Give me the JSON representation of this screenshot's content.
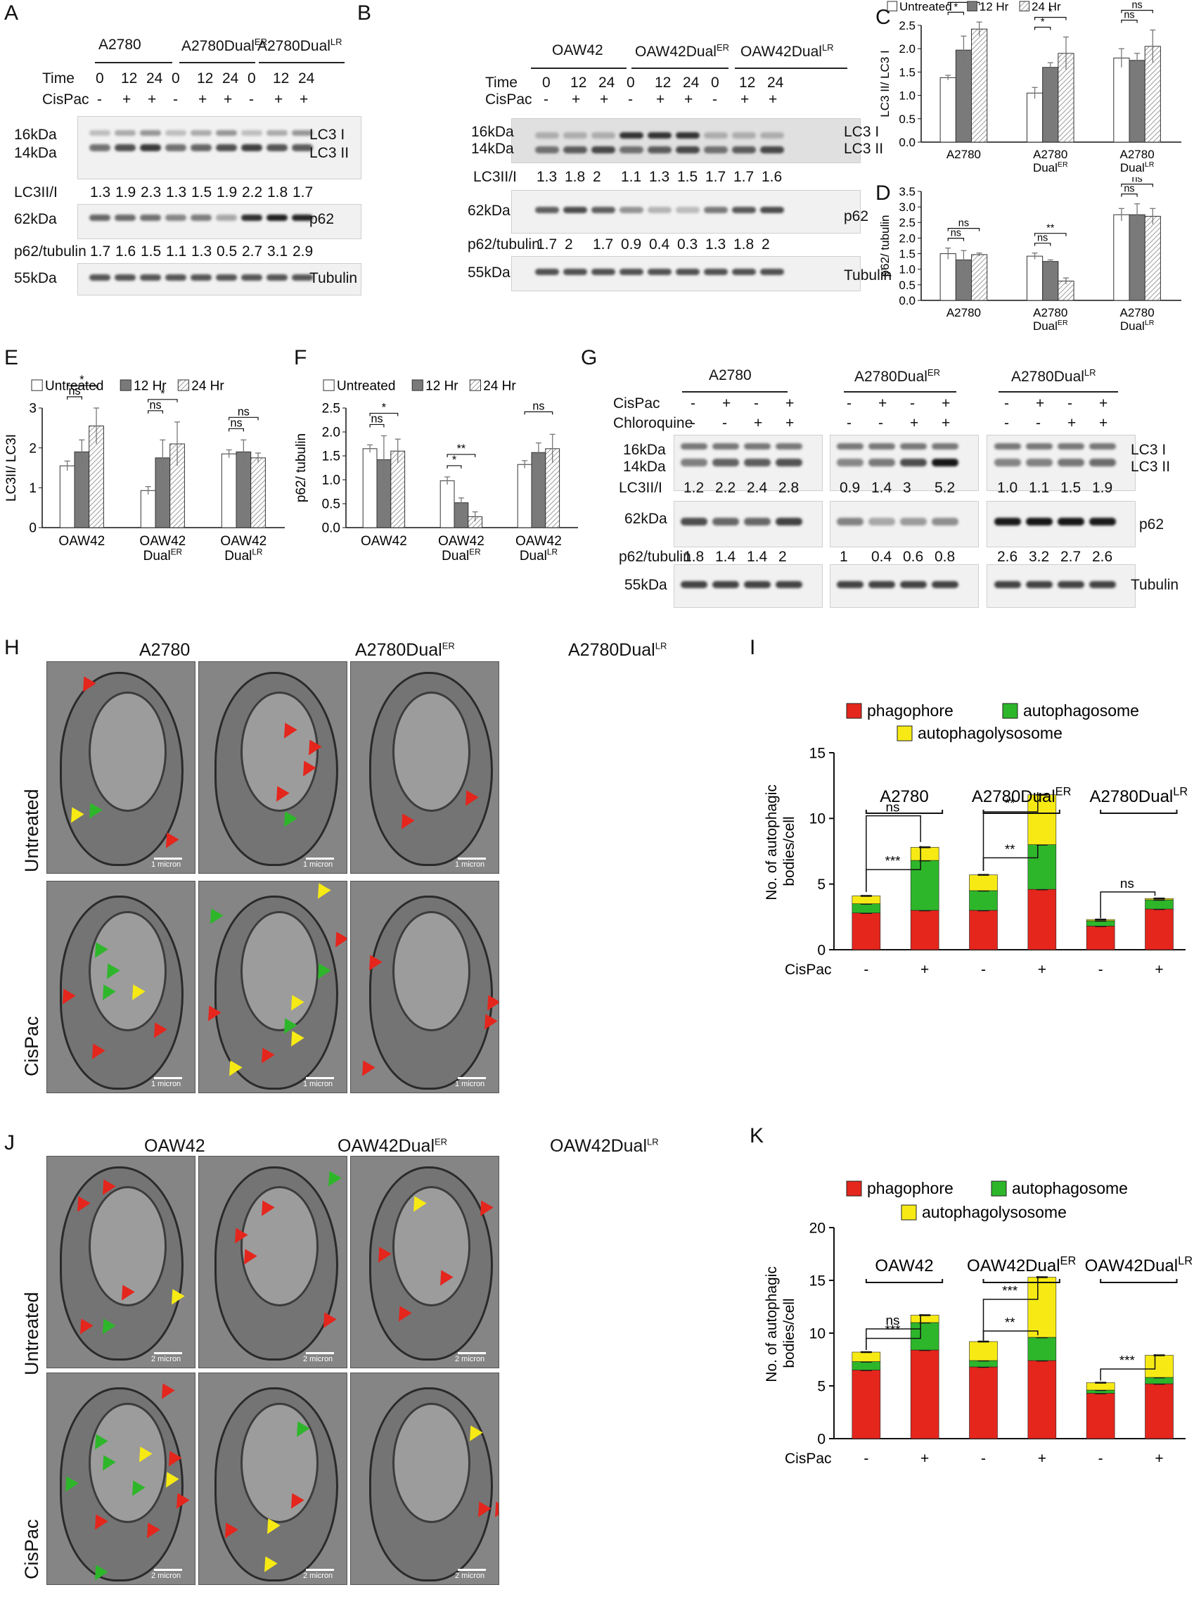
{
  "panel_labels": {
    "A": "A",
    "B": "B",
    "C": "C",
    "D": "D",
    "E": "E",
    "F": "F",
    "G": "G",
    "H": "H",
    "I": "I",
    "J": "J",
    "K": "K"
  },
  "panel_A": {
    "cell_lines": [
      "A2780",
      "A2780Dual",
      "A2780Dual"
    ],
    "cell_sups": [
      "",
      "ER",
      "LR"
    ],
    "time_label": "Time",
    "times": [
      "0",
      "12",
      "24",
      "0",
      "12",
      "24",
      "0",
      "12",
      "24"
    ],
    "cispac_label": "CisPac",
    "cispac": [
      "-",
      "+",
      "+",
      "-",
      "+",
      "+",
      "-",
      "+",
      "+"
    ],
    "mw": [
      "16kDa",
      "14kDa",
      "62kDa",
      "55kDa"
    ],
    "bands": [
      "LC3 I",
      "LC3 II",
      "p62",
      "Tubulin"
    ],
    "lc3_ratio_label": "LC3II/I",
    "lc3_ratios": [
      "1.3",
      "1.9",
      "2.3",
      "1.3",
      "1.5",
      "1.9",
      "2.2",
      "1.8",
      "1.7"
    ],
    "p62_ratio_label": "p62/tubulin",
    "p62_ratios": [
      "1.7",
      "1.6",
      "1.5",
      "1.1",
      "1.3",
      "0.5",
      "2.7",
      "3.1",
      "2.9"
    ]
  },
  "panel_B": {
    "cell_lines": [
      "OAW42",
      "OAW42Dual",
      "OAW42Dual"
    ],
    "cell_sups": [
      "",
      "ER",
      "LR"
    ],
    "time_label": "Time",
    "times": [
      "0",
      "12",
      "24",
      "0",
      "12",
      "24",
      "0",
      "12",
      "24"
    ],
    "cispac_label": "CisPac",
    "cispac": [
      "-",
      "+",
      "+",
      "-",
      "+",
      "+",
      "-",
      "+",
      "+"
    ],
    "mw": [
      "16kDa",
      "14kDa",
      "62kDa",
      "55kDa"
    ],
    "bands": [
      "LC3 I",
      "LC3 II",
      "p62",
      "Tubulin"
    ],
    "lc3_ratio_label": "LC3II/I",
    "lc3_ratios": [
      "1.3",
      "1.8",
      "2",
      "1.1",
      "1.3",
      "1.5",
      "1.7",
      "1.7",
      "1.6"
    ],
    "p62_ratio_label": "p62/tubulin",
    "p62_ratios": [
      "1.7",
      "2",
      "1.7",
      "0.9",
      "0.4",
      "0.3",
      "1.3",
      "1.8",
      "2"
    ]
  },
  "panel_G": {
    "cell_lines": [
      "A2780",
      "A2780Dual",
      "A2780Dual"
    ],
    "cell_sups": [
      "",
      "ER",
      "LR"
    ],
    "cispac_label": "CisPac",
    "chloroquine_label": "Chloroquine",
    "cispac": [
      "-",
      "+",
      "-",
      "+"
    ],
    "chloroquine": [
      "-",
      "-",
      "+",
      "+"
    ],
    "mw": [
      "16kDa",
      "14kDa",
      "62kDa",
      "55kDa"
    ],
    "bands": [
      "LC3 I",
      "LC3 II",
      "p62",
      "Tubulin"
    ],
    "lc3_ratio_label": "LC3II/I",
    "lc3_ratios": [
      "1.2",
      "2.2",
      "2.4",
      "2.8",
      "0.9",
      "1.4",
      "3",
      "5.2",
      "1.0",
      "1.1",
      "1.5",
      "1.9"
    ],
    "p62_ratio_label": "p62/tubulin",
    "p62_ratios": [
      "1.8",
      "1.4",
      "1.4",
      "2",
      "1",
      "0.4",
      "0.6",
      "0.8",
      "2.6",
      "3.2",
      "2.7",
      "2.6"
    ]
  },
  "panel_H": {
    "columns": [
      "A2780",
      "A2780Dual",
      "A2780Dual"
    ],
    "column_sups": [
      "",
      "ER",
      "LR"
    ],
    "rows": [
      "Untreated",
      "CisPac"
    ],
    "scale_text": "1 micron"
  },
  "panel_J": {
    "columns": [
      "OAW42",
      "OAW42Dual",
      "OAW42Dual"
    ],
    "column_sups": [
      "",
      "ER",
      "LR"
    ],
    "rows": [
      "Untreated",
      "CisPac"
    ],
    "scale_text": "2 micron"
  },
  "colors": {
    "phagophore": "#e4261d",
    "autophagosome": "#2eb62b",
    "autophagolysosome": "#f7ea14",
    "dark_bar": "#7a7a7a"
  },
  "chart_data": [
    {
      "id": "C",
      "type": "bar",
      "ylabel": "LC3 II/ LC3 I",
      "ylim": [
        0,
        2.5
      ],
      "yticks": [
        0,
        0.5,
        1.0,
        1.5,
        2.0,
        2.5
      ],
      "legend": [
        "Untreated",
        "12 Hr",
        "24 Hr"
      ],
      "categories": [
        "A2780",
        "A2780 Dual",
        "A2780 Dual"
      ],
      "category_sups": [
        "",
        "ER",
        "LR"
      ],
      "series": [
        {
          "name": "Untreated",
          "values": [
            1.38,
            1.05,
            1.8
          ],
          "errors": [
            0.05,
            0.12,
            0.2
          ]
        },
        {
          "name": "12 Hr",
          "values": [
            1.97,
            1.6,
            1.75
          ],
          "errors": [
            0.3,
            0.1,
            0.15
          ]
        },
        {
          "name": "24 Hr",
          "values": [
            2.42,
            1.9,
            2.05
          ],
          "errors": [
            0.15,
            0.35,
            0.35
          ]
        }
      ],
      "sig": [
        {
          "group": 0,
          "text": "**"
        },
        {
          "group": 0,
          "text": "*"
        },
        {
          "group": 1,
          "text": "*"
        },
        {
          "group": 1,
          "text": "*"
        },
        {
          "group": 2,
          "text": "ns"
        },
        {
          "group": 2,
          "text": "ns"
        }
      ]
    },
    {
      "id": "D",
      "type": "bar",
      "ylabel": "p62/ tubulin",
      "ylim": [
        0,
        3.5
      ],
      "yticks": [
        0,
        0.5,
        1.0,
        1.5,
        2.0,
        2.5,
        3.0,
        3.5
      ],
      "categories": [
        "A2780",
        "A2780 Dual",
        "A2780 Dual"
      ],
      "category_sups": [
        "",
        "ER",
        "LR"
      ],
      "series": [
        {
          "name": "Untreated",
          "values": [
            1.5,
            1.42,
            2.75
          ],
          "errors": [
            0.18,
            0.1,
            0.2
          ]
        },
        {
          "name": "12 Hr",
          "values": [
            1.3,
            1.25,
            2.75
          ],
          "errors": [
            0.3,
            0.05,
            0.35
          ]
        },
        {
          "name": "24 Hr",
          "values": [
            1.47,
            0.62,
            2.7
          ],
          "errors": [
            0.05,
            0.1,
            0.25
          ]
        }
      ],
      "sig": [
        {
          "group": 0,
          "text": "ns"
        },
        {
          "group": 0,
          "text": "ns"
        },
        {
          "group": 1,
          "text": "**"
        },
        {
          "group": 1,
          "text": "ns"
        },
        {
          "group": 2,
          "text": "ns"
        },
        {
          "group": 2,
          "text": "ns"
        }
      ]
    },
    {
      "id": "E",
      "type": "bar",
      "ylabel": "LC3II/ LC3I",
      "ylim": [
        0,
        3
      ],
      "yticks": [
        0,
        1,
        2,
        3
      ],
      "legend": [
        "Untreated",
        "12 Hr",
        "24 Hr"
      ],
      "categories": [
        "OAW42",
        "OAW42 Dual",
        "OAW42 Dual"
      ],
      "category_sups": [
        "",
        "ER",
        "LR"
      ],
      "series": [
        {
          "name": "Untreated",
          "values": [
            1.55,
            0.93,
            1.85
          ],
          "errors": [
            0.12,
            0.1,
            0.1
          ]
        },
        {
          "name": "12 Hr",
          "values": [
            1.9,
            1.75,
            1.9
          ],
          "errors": [
            0.3,
            0.45,
            0.3
          ]
        },
        {
          "name": "24 Hr",
          "values": [
            2.55,
            2.1,
            1.75
          ],
          "errors": [
            0.45,
            0.55,
            0.12
          ]
        }
      ],
      "sig": [
        {
          "group": 0,
          "text": "*"
        },
        {
          "group": 0,
          "text": "ns"
        },
        {
          "group": 1,
          "text": "*"
        },
        {
          "group": 1,
          "text": "ns"
        },
        {
          "group": 2,
          "text": "ns"
        },
        {
          "group": 2,
          "text": "ns"
        }
      ]
    },
    {
      "id": "F",
      "type": "bar",
      "ylabel": "p62/ tubulin",
      "ylim": [
        0,
        2.5
      ],
      "yticks": [
        0.0,
        0.5,
        1.0,
        1.5,
        2.0,
        2.5
      ],
      "legend": [
        "Untreated",
        "12 Hr",
        "24 Hr"
      ],
      "categories": [
        "OAW42",
        "OAW42 Dual",
        "OAW42 Dual"
      ],
      "category_sups": [
        "",
        "ER",
        "LR"
      ],
      "series": [
        {
          "name": "Untreated",
          "values": [
            1.65,
            0.98,
            1.32
          ],
          "errors": [
            0.08,
            0.08,
            0.08
          ]
        },
        {
          "name": "12 Hr",
          "values": [
            1.42,
            0.52,
            1.57
          ],
          "errors": [
            0.5,
            0.1,
            0.2
          ]
        },
        {
          "name": "24 Hr",
          "values": [
            1.6,
            0.23,
            1.65
          ],
          "errors": [
            0.25,
            0.1,
            0.3
          ]
        }
      ],
      "sig": [
        {
          "group": 0,
          "text": "*"
        },
        {
          "group": 0,
          "text": "ns"
        },
        {
          "group": 1,
          "text": "**"
        },
        {
          "group": 1,
          "text": "*"
        },
        {
          "group": 2,
          "text": "ns"
        },
        {
          "group": 2,
          "text": ""
        }
      ]
    },
    {
      "id": "I",
      "type": "bar",
      "stacked": true,
      "ylabel": "No. of autophagic bodies/cell",
      "ylim": [
        0,
        15
      ],
      "yticks": [
        0,
        5,
        10,
        15
      ],
      "legend": [
        "phagophore",
        "autophagosome",
        "autophagolysosome"
      ],
      "groups": [
        "A2780",
        "A2780Dual",
        "A2780Dual"
      ],
      "group_sups": [
        "",
        "ER",
        "LR"
      ],
      "xlabel": "CisPac",
      "conditions": [
        "-",
        "+",
        "-",
        "+",
        "-",
        "+"
      ],
      "series": [
        {
          "name": "phagophore",
          "values": [
            2.8,
            3.0,
            3.0,
            4.6,
            1.8,
            3.1
          ]
        },
        {
          "name": "autophagosome",
          "values": [
            0.7,
            3.8,
            1.5,
            3.4,
            0.4,
            0.7
          ]
        },
        {
          "name": "autophagolysosome",
          "values": [
            0.6,
            1.0,
            1.2,
            3.8,
            0.1,
            0.1
          ]
        }
      ],
      "sig": [
        "ns",
        "***",
        "**",
        "**",
        "ns"
      ]
    },
    {
      "id": "K",
      "type": "bar",
      "stacked": true,
      "ylabel": "No. of autophagic bodies/cell",
      "ylim": [
        0,
        20
      ],
      "yticks": [
        0,
        5,
        10,
        15,
        20
      ],
      "legend": [
        "phagophore",
        "autophagosome",
        "autophagolysosome"
      ],
      "groups": [
        "OAW42",
        "OAW42Dual",
        "OAW42Dual"
      ],
      "group_sups": [
        "",
        "ER",
        "LR"
      ],
      "xlabel": "CisPac",
      "conditions": [
        "-",
        "+",
        "-",
        "+",
        "-",
        "+"
      ],
      "series": [
        {
          "name": "phagophore",
          "values": [
            6.5,
            8.4,
            6.8,
            7.4,
            4.3,
            5.2
          ]
        },
        {
          "name": "autophagosome",
          "values": [
            0.8,
            2.6,
            0.6,
            2.2,
            0.3,
            0.6
          ]
        },
        {
          "name": "autophagolysosome",
          "values": [
            0.9,
            0.7,
            1.8,
            5.7,
            0.7,
            2.1
          ]
        }
      ],
      "sig": [
        "ns",
        "***",
        "***",
        "**",
        "***"
      ]
    }
  ]
}
